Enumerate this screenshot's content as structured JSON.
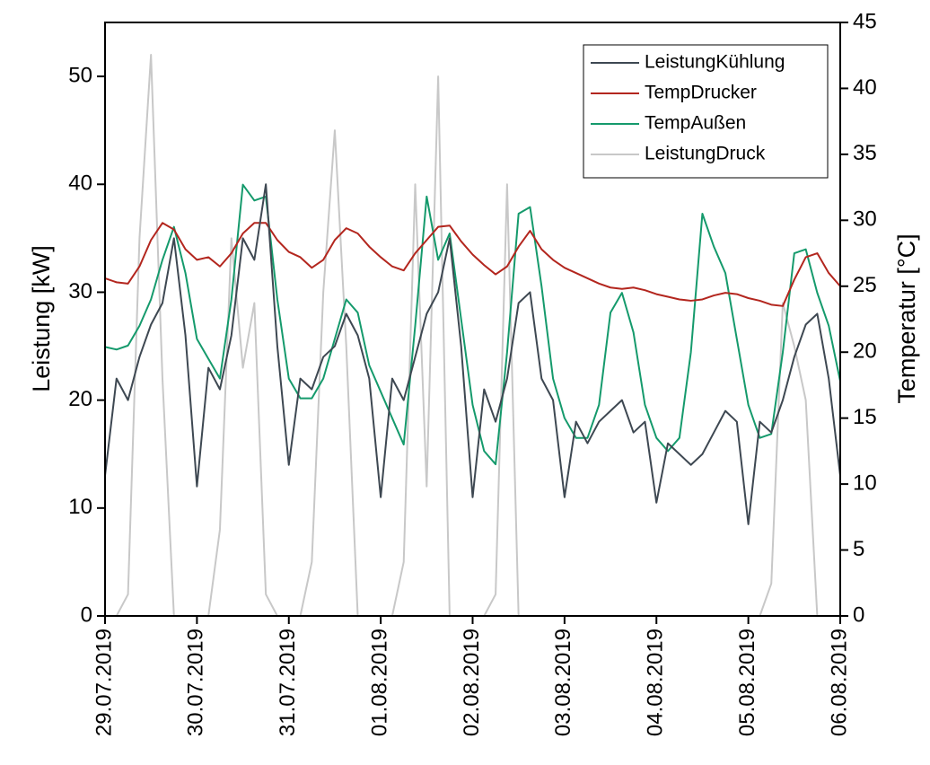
{
  "chart_data": {
    "type": "line",
    "x": [
      0,
      0.125,
      0.25,
      0.375,
      0.5,
      0.625,
      0.75,
      0.875,
      1,
      1.125,
      1.25,
      1.375,
      1.5,
      1.625,
      1.75,
      1.875,
      2,
      2.125,
      2.25,
      2.375,
      2.5,
      2.625,
      2.75,
      2.875,
      3,
      3.125,
      3.25,
      3.375,
      3.5,
      3.625,
      3.75,
      3.875,
      4,
      4.125,
      4.25,
      4.375,
      4.5,
      4.625,
      4.75,
      4.875,
      5,
      5.125,
      5.25,
      5.375,
      5.5,
      5.625,
      5.75,
      5.875,
      6,
      6.125,
      6.25,
      6.375,
      6.5,
      6.625,
      6.75,
      6.875,
      7,
      7.125,
      7.25,
      7.375,
      7.5,
      7.625,
      7.75,
      7.875,
      8
    ],
    "xlim": [
      0,
      8
    ],
    "xticks": [
      {
        "value": 0,
        "label": "29.07.2019"
      },
      {
        "value": 1,
        "label": "30.07.2019"
      },
      {
        "value": 2,
        "label": "31.07.2019"
      },
      {
        "value": 3,
        "label": "01.08.2019"
      },
      {
        "value": 4,
        "label": "02.08.2019"
      },
      {
        "value": 5,
        "label": "03.08.2019"
      },
      {
        "value": 6,
        "label": "04.08.2019"
      },
      {
        "value": 7,
        "label": "05.08.2019"
      },
      {
        "value": 8,
        "label": "06.08.2019"
      }
    ],
    "ylabel": "Leistung [kW]",
    "ylim": [
      0,
      55
    ],
    "yticks": [
      0,
      10,
      20,
      30,
      40,
      50
    ],
    "y2label": "Temperatur [°C]",
    "y2lim": [
      0,
      45
    ],
    "y2ticks": [
      0,
      5,
      10,
      15,
      20,
      25,
      30,
      35,
      40,
      45
    ],
    "legend": "upper right",
    "series": [
      {
        "name": "LeistungKühlung",
        "color": "#3e4852",
        "axis": "y",
        "values": [
          13,
          22,
          20,
          24,
          27,
          29,
          35,
          26,
          12,
          23,
          21,
          26,
          35,
          33,
          40,
          25,
          14,
          22,
          21,
          24,
          25,
          28,
          26,
          22,
          11,
          22,
          20,
          24,
          28,
          30,
          35,
          25,
          11,
          21,
          18,
          22,
          29,
          30,
          22,
          20,
          11,
          18,
          16,
          18,
          19,
          20,
          17,
          18,
          10.5,
          16,
          15,
          14,
          15,
          17,
          19,
          18,
          8.5,
          18,
          17,
          20,
          24,
          27,
          28,
          22,
          13
        ]
      },
      {
        "name": "TempDrucker",
        "color": "#b3261e",
        "axis": "y2",
        "values": [
          25.6,
          25.3,
          25.2,
          26.5,
          28.5,
          29.8,
          29.3,
          27.8,
          27.0,
          27.2,
          26.5,
          27.5,
          29.0,
          29.8,
          29.8,
          28.5,
          27.6,
          27.2,
          26.4,
          27.0,
          28.5,
          29.4,
          29.0,
          28.0,
          27.2,
          26.5,
          26.2,
          27.5,
          28.5,
          29.5,
          29.6,
          28.4,
          27.4,
          26.6,
          25.9,
          26.5,
          28.0,
          29.2,
          27.8,
          27.0,
          26.4,
          26.0,
          25.6,
          25.2,
          24.9,
          24.8,
          24.9,
          24.7,
          24.4,
          24.2,
          24.0,
          23.9,
          24.0,
          24.3,
          24.5,
          24.4,
          24.1,
          23.9,
          23.6,
          23.5,
          25.5,
          27.2,
          27.5,
          26.0,
          25.0
        ]
      },
      {
        "name": "TempAußen",
        "color": "#159a6c",
        "axis": "y2",
        "values": [
          20.4,
          20.2,
          20.5,
          22,
          24,
          27,
          29.5,
          26,
          21,
          19.5,
          18,
          24,
          32.7,
          31.5,
          31.8,
          24,
          18,
          16.5,
          16.5,
          18,
          21,
          24,
          23,
          19,
          17,
          15,
          13,
          22,
          31.8,
          27,
          29,
          22.5,
          16,
          12.5,
          11.5,
          20,
          30.5,
          31,
          25,
          18,
          15,
          13.5,
          13.5,
          16,
          23,
          24.5,
          21.5,
          16,
          13.5,
          12.5,
          13.5,
          20,
          30.5,
          28,
          26,
          21,
          16,
          13.5,
          13.8,
          20,
          27.5,
          27.8,
          24.5,
          22,
          17.8
        ]
      },
      {
        "name": "LeistungDruck",
        "color": "#c8c8c8",
        "axis": "y",
        "values": [
          0,
          0,
          2,
          35,
          52,
          22,
          0,
          0,
          0,
          0,
          8,
          35,
          23,
          29,
          2,
          0,
          0,
          0,
          5,
          30,
          45,
          25,
          0,
          0,
          0,
          0,
          5,
          40,
          12,
          50,
          0,
          0,
          0,
          0,
          2,
          40,
          0,
          0,
          0,
          0,
          0,
          0,
          0,
          0,
          0,
          0,
          0,
          0,
          0,
          0,
          0,
          0,
          0,
          0,
          0,
          0,
          0,
          0,
          3,
          29,
          25,
          20,
          0,
          0,
          0
        ]
      }
    ]
  }
}
